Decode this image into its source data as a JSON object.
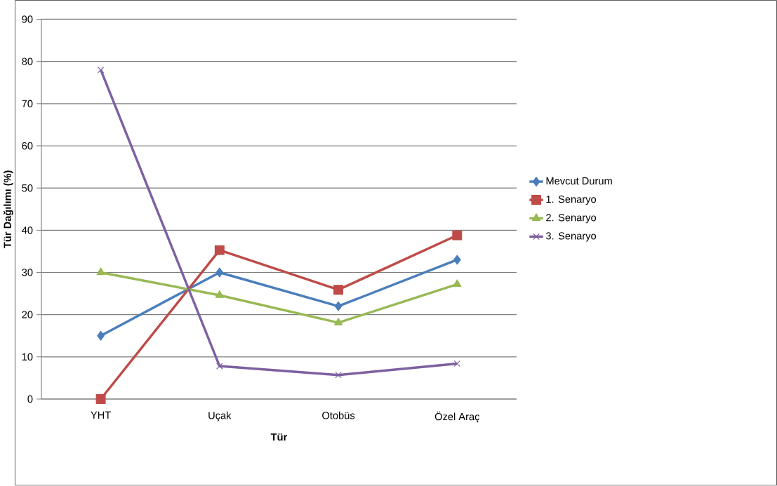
{
  "chart_data": {
    "type": "line",
    "xlabel": "Tür",
    "ylabel": "Tür Dağılımı (%)",
    "categories": [
      "YHT",
      "Uçak",
      "Otobüs",
      "Özel Araç"
    ],
    "series": [
      {
        "name": "Mevcut Durum",
        "color": "#4a7ebb",
        "marker": "diamond",
        "values": [
          15,
          30,
          22,
          33
        ]
      },
      {
        "name": "1. Senaryo",
        "color": "#be4b48",
        "marker": "square",
        "values": [
          0,
          35.3,
          25.9,
          38.8
        ]
      },
      {
        "name": "2. Senaryo",
        "color": "#98b954",
        "marker": "triangle",
        "values": [
          30,
          24.6,
          18.1,
          27.2
        ]
      },
      {
        "name": "3. Senaryo",
        "color": "#7d60a0",
        "marker": "cross",
        "values": [
          78,
          7.8,
          5.7,
          8.4
        ]
      }
    ],
    "ylim": [
      0,
      90
    ],
    "yticks": [
      0,
      10,
      20,
      30,
      40,
      50,
      60,
      70,
      80,
      90
    ],
    "grid": "y",
    "legend": "right",
    "line_style": "solid"
  }
}
